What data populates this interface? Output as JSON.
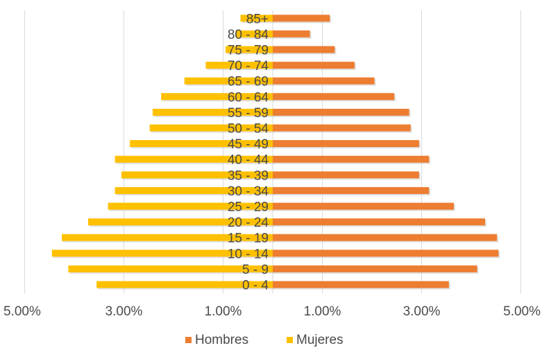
{
  "chart_data": {
    "type": "bar",
    "orientation": "horizontal",
    "categories": [
      "85+",
      "80 - 84",
      "75 - 79",
      "70 - 74",
      "65 - 69",
      "60 - 64",
      "55 - 59",
      "50 - 54",
      "45 - 49",
      "40 - 44",
      "35 - 39",
      "30 - 34",
      "25 - 29",
      "20 - 24",
      "15 - 19",
      "10 - 14",
      "5 - 9",
      "0 - 4"
    ],
    "series": [
      {
        "name": "Hombres",
        "color": "#ED7D31",
        "side": "right",
        "values": [
          1.15,
          0.75,
          1.25,
          1.65,
          2.05,
          2.45,
          2.75,
          2.78,
          2.95,
          3.15,
          2.95,
          3.15,
          3.65,
          4.28,
          4.52,
          4.55,
          4.12,
          3.55
        ]
      },
      {
        "name": "Mujeres",
        "color": "#FFC000",
        "side": "left",
        "values": [
          0.65,
          0.75,
          0.95,
          1.35,
          1.78,
          2.25,
          2.42,
          2.48,
          2.88,
          3.18,
          3.05,
          3.18,
          3.32,
          3.72,
          4.25,
          4.45,
          4.12,
          3.55
        ]
      }
    ],
    "x_ticks": [
      "5.00%",
      "3.00%",
      "1.00%",
      "1.00%",
      "3.00%",
      "5.00%"
    ],
    "x_tick_values": [
      -5,
      -3,
      -1,
      1,
      3,
      5
    ],
    "xlim": [
      -5,
      5
    ],
    "legend_position": "bottom",
    "grid": true
  }
}
